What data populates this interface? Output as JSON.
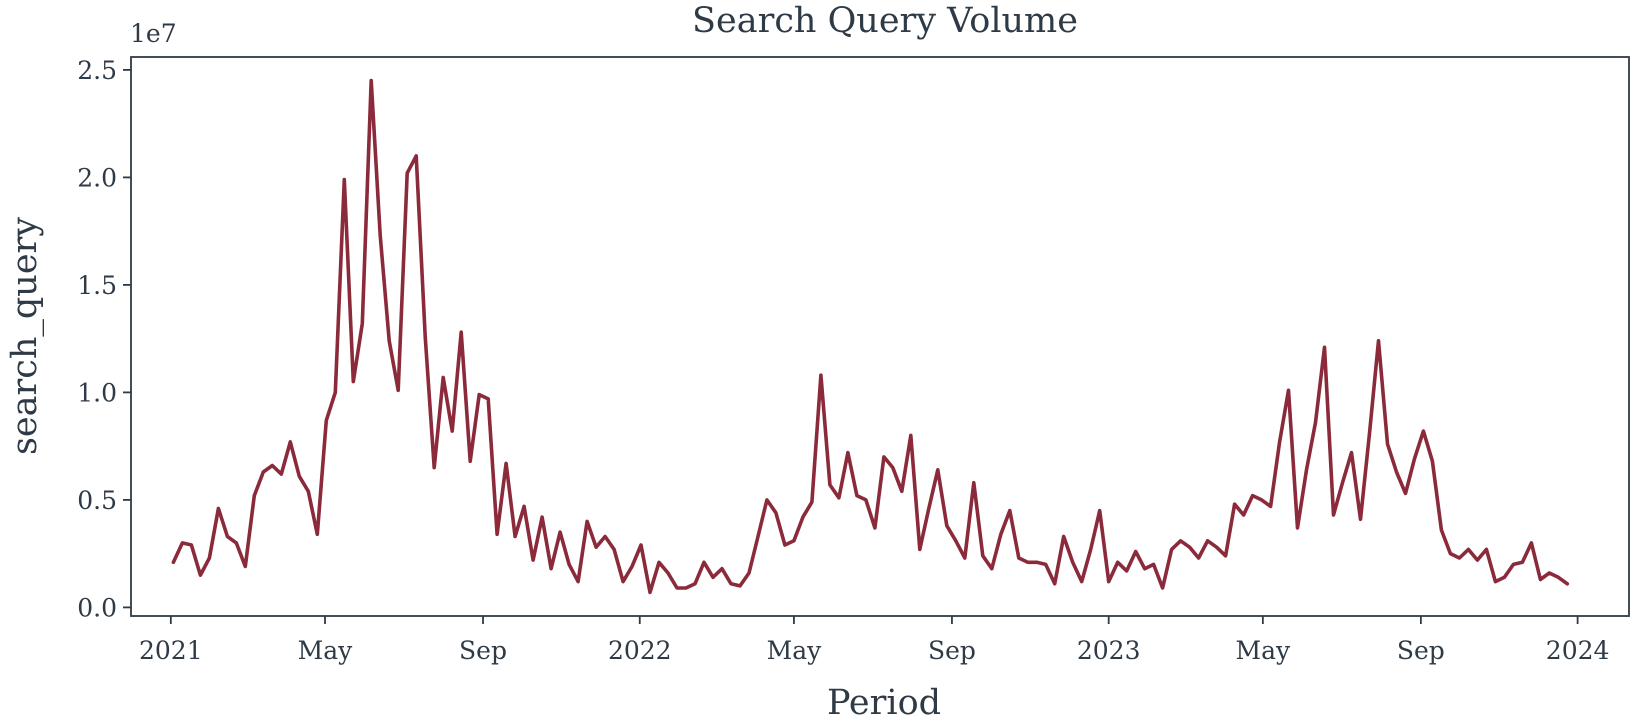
{
  "chart_data": {
    "type": "line",
    "title": "Search Query Volume",
    "xlabel": "Period",
    "ylabel": "search_query",
    "y_offset_label": "1e7",
    "y_scale": 10000000,
    "ylim": [
      -400000,
      25600000
    ],
    "xlim": [
      "2020-12-01",
      "2024-02-10"
    ],
    "y_ticks": [
      {
        "value": 0,
        "label": "0.0"
      },
      {
        "value": 5000000,
        "label": "0.5"
      },
      {
        "value": 10000000,
        "label": "1.0"
      },
      {
        "value": 15000000,
        "label": "1.5"
      },
      {
        "value": 20000000,
        "label": "2.0"
      },
      {
        "value": 25000000,
        "label": "2.5"
      }
    ],
    "x_ticks": [
      {
        "date": "2021-01-01",
        "label": "2021"
      },
      {
        "date": "2021-05-01",
        "label": "May"
      },
      {
        "date": "2021-09-01",
        "label": "Sep"
      },
      {
        "date": "2022-01-01",
        "label": "2022"
      },
      {
        "date": "2022-05-01",
        "label": "May"
      },
      {
        "date": "2022-09-01",
        "label": "Sep"
      },
      {
        "date": "2023-01-01",
        "label": "2023"
      },
      {
        "date": "2023-05-01",
        "label": "May"
      },
      {
        "date": "2023-09-01",
        "label": "Sep"
      },
      {
        "date": "2024-01-01",
        "label": "2024"
      }
    ],
    "grid": false,
    "legend": "none",
    "colors": {
      "line": "#8b2a3a",
      "text": "#2e3a46",
      "frame": "#2e3a46"
    },
    "series": [
      {
        "x": [
          "2021-01-03",
          "2021-01-10",
          "2021-01-17",
          "2021-01-24",
          "2021-01-31",
          "2021-02-07",
          "2021-02-14",
          "2021-02-21",
          "2021-02-28",
          "2021-03-07",
          "2021-03-14",
          "2021-03-21",
          "2021-03-28",
          "2021-04-04",
          "2021-04-11",
          "2021-04-18",
          "2021-04-25",
          "2021-05-02",
          "2021-05-09",
          "2021-05-16",
          "2021-05-23",
          "2021-05-30",
          "2021-06-06",
          "2021-06-13",
          "2021-06-20",
          "2021-06-27",
          "2021-07-04",
          "2021-07-11",
          "2021-07-18",
          "2021-07-25",
          "2021-08-01",
          "2021-08-08",
          "2021-08-15",
          "2021-08-22",
          "2021-08-29",
          "2021-09-05",
          "2021-09-12",
          "2021-09-19",
          "2021-09-26",
          "2021-10-03",
          "2021-10-10",
          "2021-10-17",
          "2021-10-24",
          "2021-10-31",
          "2021-11-07",
          "2021-11-14",
          "2021-11-21",
          "2021-11-28",
          "2021-12-05",
          "2021-12-12",
          "2021-12-19",
          "2021-12-26",
          "2022-01-02",
          "2022-01-09",
          "2022-01-16",
          "2022-01-23",
          "2022-01-30",
          "2022-02-06",
          "2022-02-13",
          "2022-02-20",
          "2022-02-27",
          "2022-03-06",
          "2022-03-13",
          "2022-03-20",
          "2022-03-27",
          "2022-04-03",
          "2022-04-10",
          "2022-04-17",
          "2022-04-24",
          "2022-05-01",
          "2022-05-08",
          "2022-05-15",
          "2022-05-22",
          "2022-05-29",
          "2022-06-05",
          "2022-06-12",
          "2022-06-19",
          "2022-06-26",
          "2022-07-03",
          "2022-07-10",
          "2022-07-17",
          "2022-07-24",
          "2022-07-31",
          "2022-08-07",
          "2022-08-14",
          "2022-08-21",
          "2022-08-28",
          "2022-09-04",
          "2022-09-11",
          "2022-09-18",
          "2022-09-25",
          "2022-10-02",
          "2022-10-09",
          "2022-10-16",
          "2022-10-23",
          "2022-10-30",
          "2022-11-06",
          "2022-11-13",
          "2022-11-20",
          "2022-11-27",
          "2022-12-04",
          "2022-12-11",
          "2022-12-18",
          "2022-12-25",
          "2023-01-01",
          "2023-01-08",
          "2023-01-15",
          "2023-01-22",
          "2023-01-29",
          "2023-02-05",
          "2023-02-12",
          "2023-02-19",
          "2023-02-26",
          "2023-03-05",
          "2023-03-12",
          "2023-03-19",
          "2023-03-26",
          "2023-04-02",
          "2023-04-09",
          "2023-04-16",
          "2023-04-23",
          "2023-04-30",
          "2023-05-07",
          "2023-05-14",
          "2023-05-21",
          "2023-05-28",
          "2023-06-04",
          "2023-06-11",
          "2023-06-18",
          "2023-06-25",
          "2023-07-02",
          "2023-07-09",
          "2023-07-16",
          "2023-07-23",
          "2023-07-30",
          "2023-08-06",
          "2023-08-13",
          "2023-08-20",
          "2023-08-27",
          "2023-09-03",
          "2023-09-10",
          "2023-09-17",
          "2023-09-24",
          "2023-10-01",
          "2023-10-08",
          "2023-10-15",
          "2023-10-22",
          "2023-10-29",
          "2023-11-05",
          "2023-11-12",
          "2023-11-19",
          "2023-11-26",
          "2023-12-03",
          "2023-12-10",
          "2023-12-17",
          "2023-12-24"
        ],
        "values": [
          2100000,
          3000000,
          2900000,
          1500000,
          2300000,
          4600000,
          3300000,
          3000000,
          1900000,
          5200000,
          6300000,
          6600000,
          6200000,
          7700000,
          6100000,
          5400000,
          3400000,
          8700000,
          10000000,
          19900000,
          10500000,
          13200000,
          24500000,
          17300000,
          12400000,
          10100000,
          20200000,
          21000000,
          12600000,
          6500000,
          10700000,
          8200000,
          12800000,
          6800000,
          9900000,
          9700000,
          3400000,
          6700000,
          3300000,
          4700000,
          2200000,
          4200000,
          1800000,
          3500000,
          2000000,
          1200000,
          4000000,
          2800000,
          3300000,
          2700000,
          1200000,
          1900000,
          2900000,
          700000,
          2100000,
          1600000,
          900000,
          900000,
          1100000,
          2100000,
          1400000,
          1800000,
          1100000,
          1000000,
          1600000,
          3300000,
          5000000,
          4400000,
          2900000,
          3100000,
          4200000,
          4900000,
          10800000,
          5700000,
          5100000,
          7200000,
          5200000,
          5000000,
          3700000,
          7000000,
          6500000,
          5400000,
          8000000,
          2700000,
          4600000,
          6400000,
          3800000,
          3100000,
          2300000,
          5800000,
          2400000,
          1800000,
          3400000,
          4500000,
          2300000,
          2100000,
          2100000,
          2000000,
          1100000,
          3300000,
          2100000,
          1200000,
          2700000,
          4500000,
          1200000,
          2100000,
          1700000,
          2600000,
          1800000,
          2000000,
          900000,
          2700000,
          3100000,
          2800000,
          2300000,
          3100000,
          2800000,
          2400000,
          4800000,
          4300000,
          5200000,
          5000000,
          4700000,
          7700000,
          10100000,
          3700000,
          6400000,
          8600000,
          12100000,
          4300000,
          5800000,
          7200000,
          4100000,
          8100000,
          12400000,
          7600000,
          6300000,
          5300000,
          6900000,
          8200000,
          6800000,
          3600000,
          2500000,
          2300000,
          2700000,
          2200000,
          2700000,
          1200000,
          1400000,
          2000000,
          2100000,
          3000000,
          1300000,
          1600000,
          1400000,
          1100000
        ]
      }
    ]
  }
}
